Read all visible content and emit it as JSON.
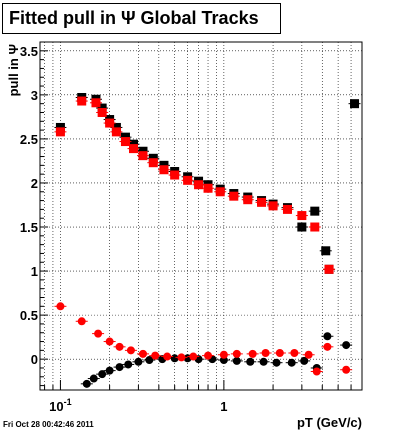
{
  "footer_text": "Fri Oct 28 00:42:46 2011",
  "chart_data": {
    "type": "scatter",
    "title": "Fitted pull in Ψ   Global Tracks",
    "xlabel": "pT (GeV/c)",
    "ylabel": "pull in Ψ",
    "xscale": "log",
    "xlim": [
      0.075,
      7.0
    ],
    "ylim": [
      -0.35,
      3.6
    ],
    "grid": true,
    "x_ticks": [
      {
        "v": 0.1,
        "label": "10",
        "sup": "-1"
      },
      {
        "v": 1,
        "label": "1",
        "sup": ""
      }
    ],
    "y_ticks": [
      0,
      0.5,
      1,
      1.5,
      2,
      2.5,
      3,
      3.5
    ],
    "y_tick_labels": [
      "0",
      "0.5",
      "1",
      "1.5",
      "2",
      "2.5",
      "3",
      "3.5"
    ],
    "series": [
      {
        "color": "#000000",
        "marker": "square",
        "points": [
          [
            0.1,
            2.63
          ],
          [
            0.135,
            2.97
          ],
          [
            0.165,
            2.95
          ],
          [
            0.18,
            2.85
          ],
          [
            0.2,
            2.72
          ],
          [
            0.22,
            2.63
          ],
          [
            0.25,
            2.52
          ],
          [
            0.28,
            2.44
          ],
          [
            0.32,
            2.36
          ],
          [
            0.37,
            2.28
          ],
          [
            0.43,
            2.2
          ],
          [
            0.5,
            2.13
          ],
          [
            0.6,
            2.07
          ],
          [
            0.7,
            2.02
          ],
          [
            0.8,
            1.98
          ],
          [
            0.95,
            1.93
          ],
          [
            1.15,
            1.88
          ],
          [
            1.4,
            1.84
          ],
          [
            1.7,
            1.8
          ],
          [
            2.0,
            1.76
          ],
          [
            2.45,
            1.72
          ],
          [
            3.0,
            1.5
          ],
          [
            3.6,
            1.68
          ],
          [
            4.2,
            1.23
          ],
          [
            4.4,
            1.02
          ],
          [
            6.3,
            2.9
          ]
        ]
      },
      {
        "color": "#ff0000",
        "marker": "square",
        "points": [
          [
            0.1,
            2.58
          ],
          [
            0.135,
            2.93
          ],
          [
            0.165,
            2.91
          ],
          [
            0.18,
            2.8
          ],
          [
            0.2,
            2.68
          ],
          [
            0.22,
            2.58
          ],
          [
            0.25,
            2.47
          ],
          [
            0.28,
            2.39
          ],
          [
            0.32,
            2.31
          ],
          [
            0.37,
            2.23
          ],
          [
            0.43,
            2.15
          ],
          [
            0.5,
            2.09
          ],
          [
            0.6,
            2.03
          ],
          [
            0.7,
            1.98
          ],
          [
            0.8,
            1.94
          ],
          [
            0.95,
            1.9
          ],
          [
            1.15,
            1.85
          ],
          [
            1.4,
            1.81
          ],
          [
            1.7,
            1.78
          ],
          [
            2.0,
            1.74
          ],
          [
            2.45,
            1.7
          ],
          [
            3.0,
            1.63
          ],
          [
            3.6,
            1.5
          ],
          [
            4.4,
            1.02
          ]
        ]
      },
      {
        "color": "#000000",
        "marker": "circle",
        "points": [
          [
            0.145,
            -0.28
          ],
          [
            0.16,
            -0.22
          ],
          [
            0.18,
            -0.17
          ],
          [
            0.2,
            -0.13
          ],
          [
            0.23,
            -0.09
          ],
          [
            0.26,
            -0.06
          ],
          [
            0.3,
            -0.03
          ],
          [
            0.35,
            -0.01
          ],
          [
            0.42,
            0.0
          ],
          [
            0.5,
            0.01
          ],
          [
            0.6,
            0.01
          ],
          [
            0.7,
            0.0
          ],
          [
            0.85,
            0.0
          ],
          [
            1.0,
            -0.01
          ],
          [
            1.2,
            -0.02
          ],
          [
            1.45,
            -0.03
          ],
          [
            1.75,
            -0.03
          ],
          [
            2.1,
            -0.04
          ],
          [
            2.6,
            -0.04
          ],
          [
            3.1,
            -0.02
          ],
          [
            3.7,
            -0.1
          ],
          [
            4.3,
            0.26
          ],
          [
            5.6,
            0.16
          ]
        ]
      },
      {
        "color": "#ff0000",
        "marker": "circle",
        "points": [
          [
            0.1,
            0.6
          ],
          [
            0.135,
            0.43
          ],
          [
            0.17,
            0.29
          ],
          [
            0.2,
            0.2
          ],
          [
            0.23,
            0.14
          ],
          [
            0.27,
            0.1
          ],
          [
            0.32,
            0.06
          ],
          [
            0.38,
            0.04
          ],
          [
            0.45,
            0.03
          ],
          [
            0.55,
            0.02
          ],
          [
            0.65,
            0.03
          ],
          [
            0.8,
            0.04
          ],
          [
            1.0,
            0.05
          ],
          [
            1.2,
            0.06
          ],
          [
            1.5,
            0.06
          ],
          [
            1.8,
            0.07
          ],
          [
            2.2,
            0.07
          ],
          [
            2.7,
            0.07
          ],
          [
            3.3,
            0.05
          ],
          [
            3.7,
            -0.14
          ],
          [
            4.3,
            0.14
          ],
          [
            5.6,
            -0.12
          ]
        ]
      }
    ]
  }
}
